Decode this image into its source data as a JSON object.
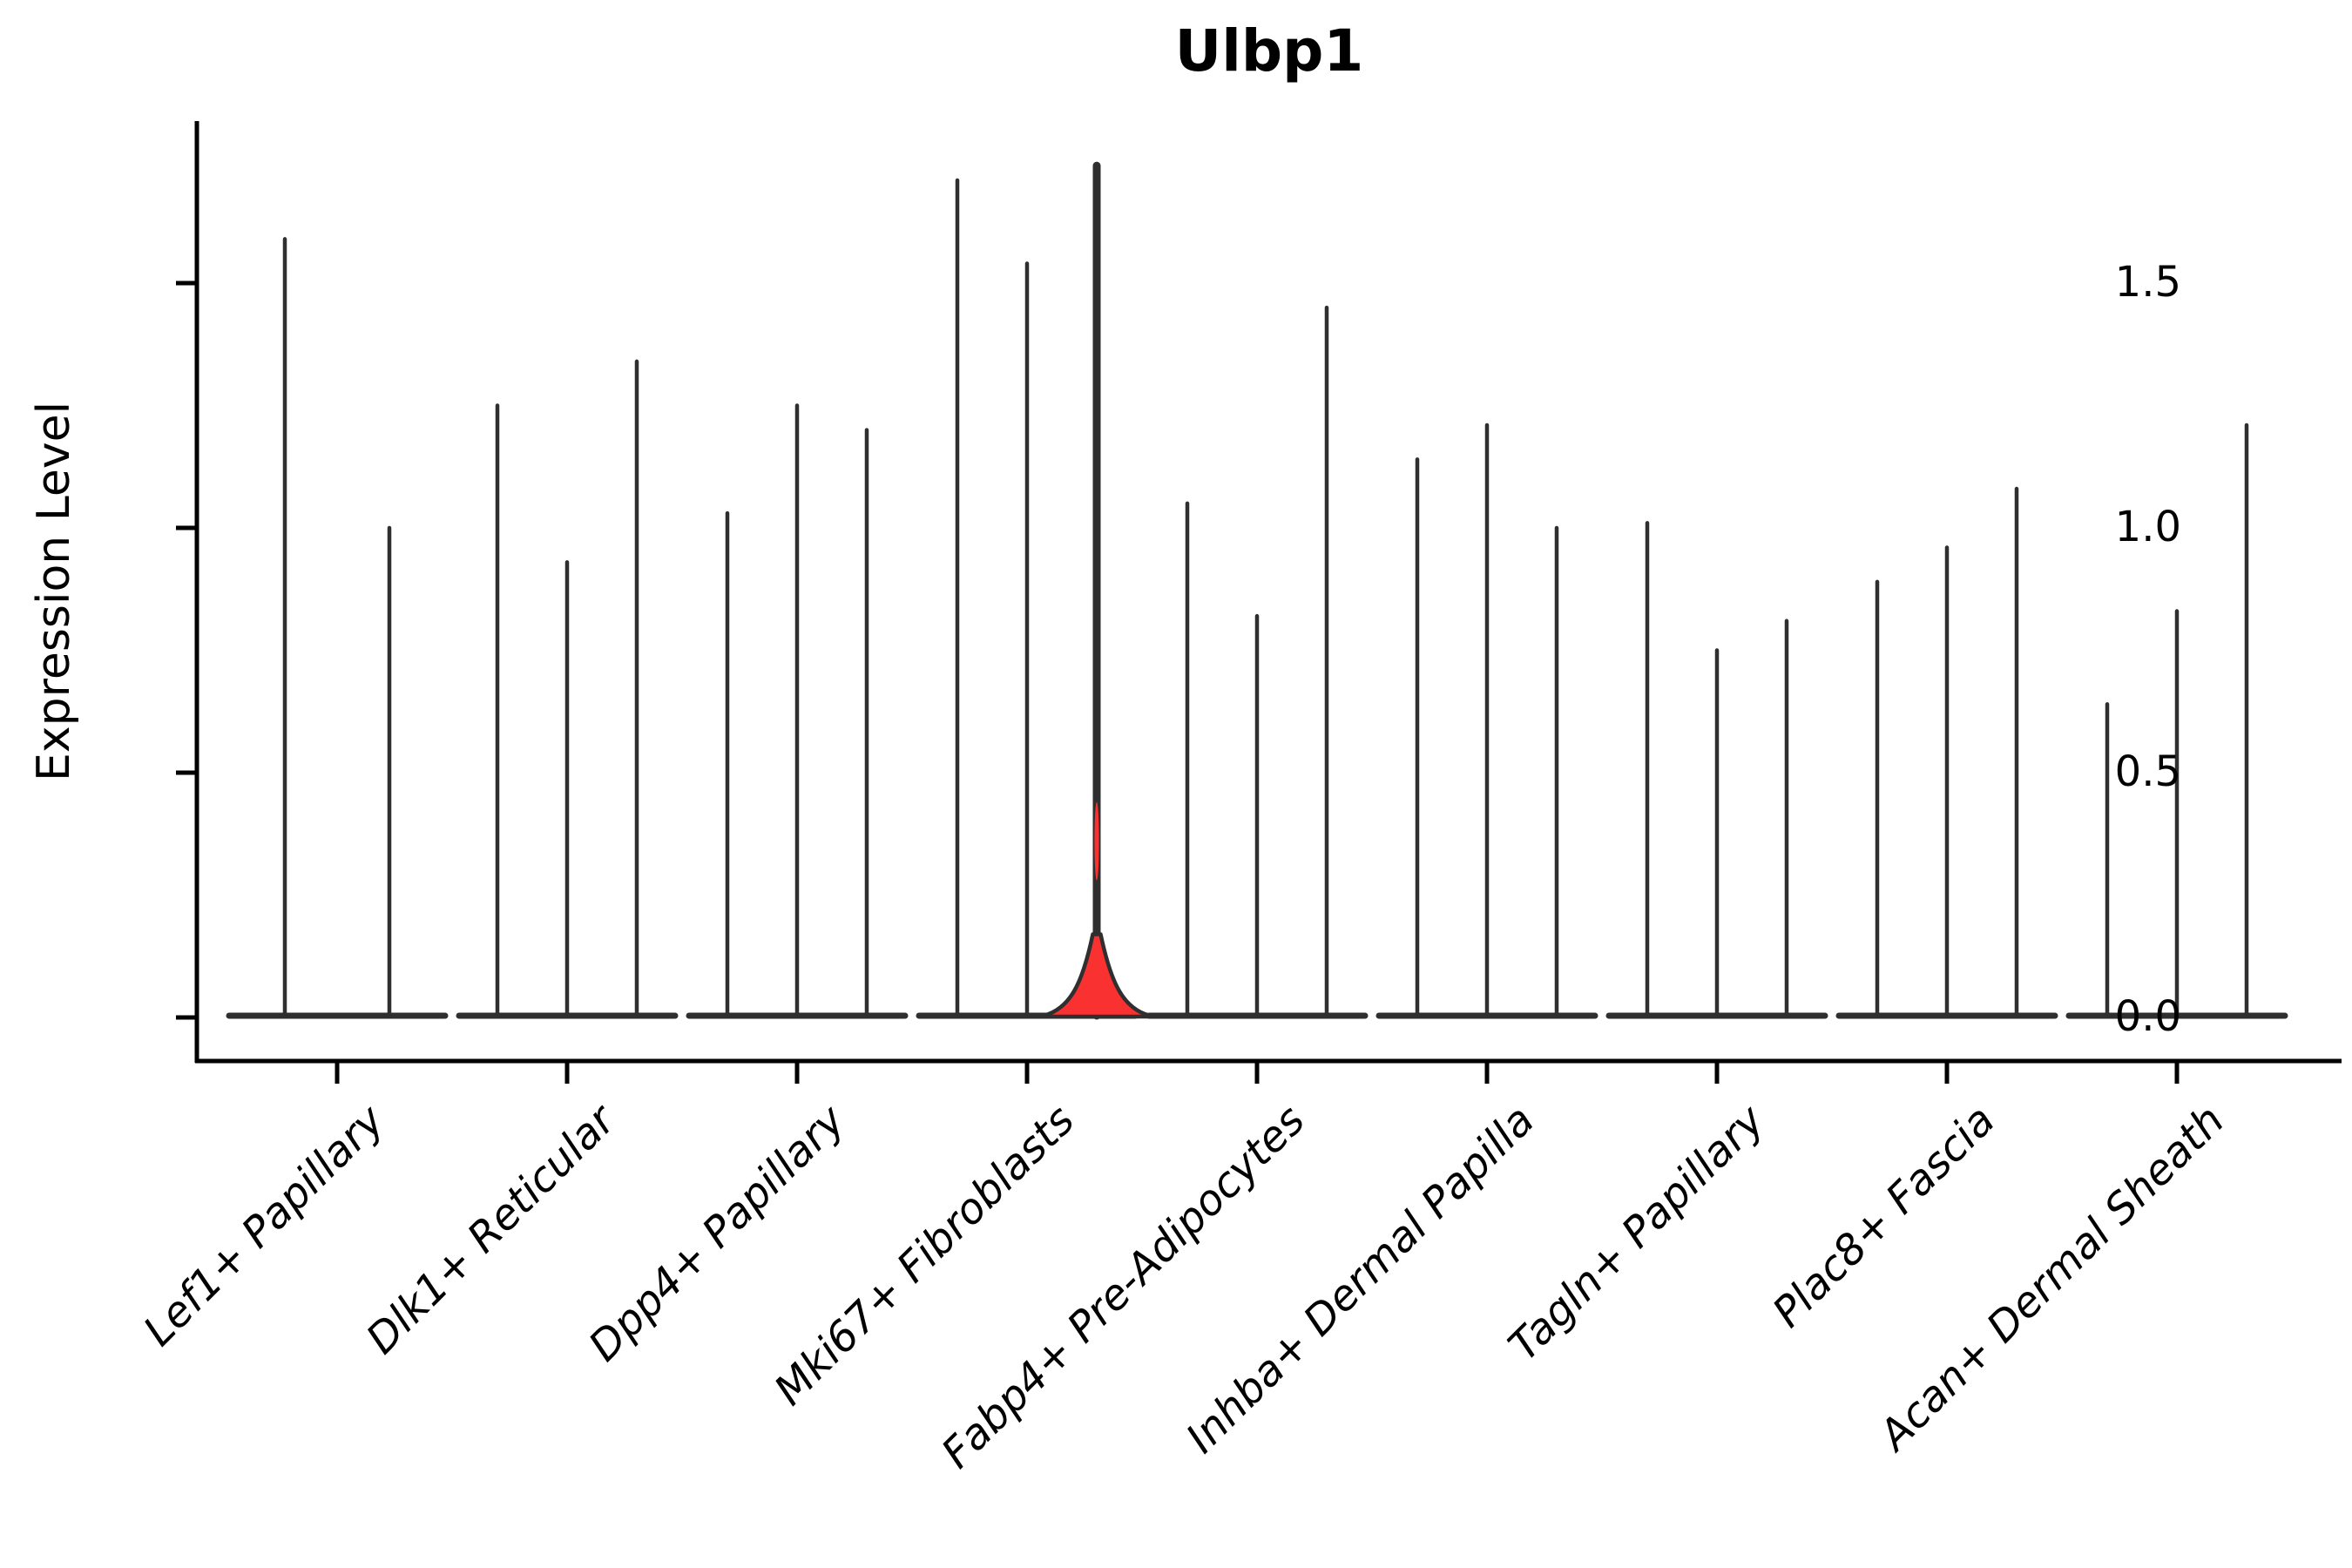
{
  "figure": {
    "title": "Ulbp1",
    "ylabel": "Expression Level"
  },
  "chart_data": {
    "type": "violin",
    "title": "Ulbp1",
    "xlabel": "",
    "ylabel": "Expression Level",
    "ytick_labels": [
      "0.0",
      "0.5",
      "1.0",
      "1.5"
    ],
    "yticks": [
      0,
      0.5,
      1.0,
      1.5
    ],
    "ylim": [
      -0.09,
      1.83
    ],
    "grid": false,
    "legend_position": "none",
    "x_label_rotation_deg": 45,
    "colors": {
      "violin_line": "#2f2f2f",
      "highlight_fill": "#f93131",
      "axis": "#000000",
      "background": "#ffffff"
    },
    "groups": [
      {
        "category": "Lef1+ Papillary",
        "violins": [
          {
            "max": 1.59
          },
          {
            "max": 1.0
          }
        ]
      },
      {
        "category": "Dlk1+ Reticular",
        "violins": [
          {
            "max": 1.25
          },
          {
            "max": 0.93
          },
          {
            "max": 1.34
          }
        ]
      },
      {
        "category": "Dpp4+ Papillary",
        "violins": [
          {
            "max": 1.03
          },
          {
            "max": 1.25
          },
          {
            "max": 1.2
          }
        ]
      },
      {
        "category": "Mki67+ Fibroblasts",
        "violins": [
          {
            "max": 1.71
          },
          {
            "max": 1.54
          },
          {
            "max": 1.74,
            "highlight": true,
            "filled_base_bell_to": 0.17,
            "interior_fill_segment": [
              0.28,
              0.44
            ]
          }
        ]
      },
      {
        "category": "Fabp4+ Pre-Adipocytes",
        "violins": [
          {
            "max": 1.05
          },
          {
            "max": 0.82
          },
          {
            "max": 1.45
          }
        ]
      },
      {
        "category": "Inhba+ Dermal Papilla",
        "violins": [
          {
            "max": 1.14
          },
          {
            "max": 1.21
          },
          {
            "max": 1.0
          }
        ]
      },
      {
        "category": "Tagln+ Papillary",
        "violins": [
          {
            "max": 1.01
          },
          {
            "max": 0.75
          },
          {
            "max": 0.81
          }
        ]
      },
      {
        "category": "Plac8+ Fascia",
        "violins": [
          {
            "max": 0.89
          },
          {
            "max": 0.96
          },
          {
            "max": 1.08
          }
        ]
      },
      {
        "category": "Acan+ Dermal Sheath",
        "violins": [
          {
            "max": 0.64
          },
          {
            "max": 0.83
          },
          {
            "max": 1.21
          }
        ]
      }
    ]
  }
}
